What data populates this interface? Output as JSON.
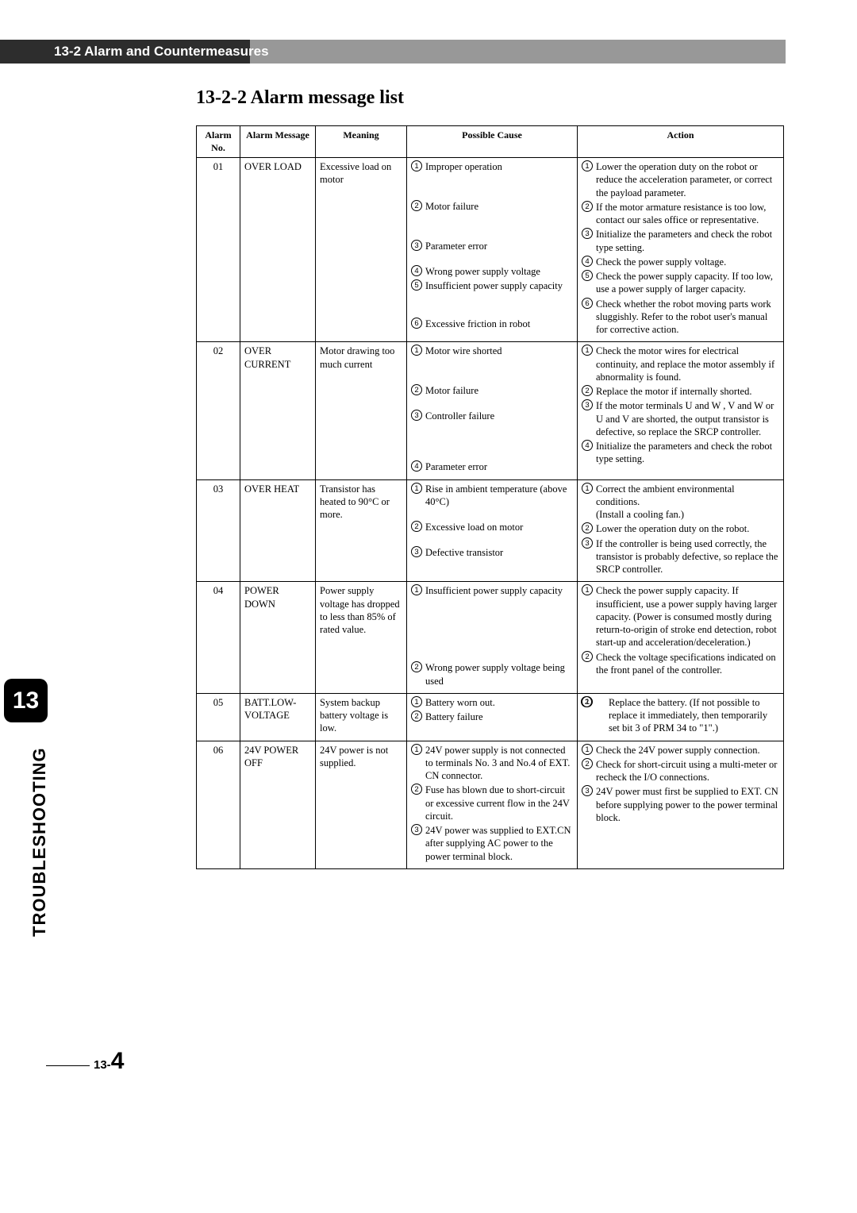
{
  "banner": {
    "text": "13-2 Alarm and Countermeasures"
  },
  "section_title": "13-2-2  Alarm message list",
  "chapter_tab": "13",
  "side_label": "TROUBLESHOOTING",
  "page_number": {
    "prefix": "13-",
    "num": "4"
  },
  "table": {
    "headers": {
      "no": "Alarm No.",
      "msg": "Alarm Message",
      "mean": "Meaning",
      "cause": "Possible Cause",
      "action": "Action"
    },
    "rows": [
      {
        "no": "01",
        "msg": "OVER LOAD",
        "mean": "Excessive load on motor",
        "causes": [
          {
            "n": "1",
            "t": "Improper operation"
          },
          {
            "n": "2",
            "t": "Motor failure"
          },
          {
            "n": "3",
            "t": "Parameter error"
          },
          {
            "n": "4",
            "t": "Wrong power supply voltage"
          },
          {
            "n": "5",
            "t": "Insufficient power supply capacity"
          },
          {
            "n": "6",
            "t": "Excessive friction in robot"
          }
        ],
        "actions": [
          {
            "n": "1",
            "t": "Lower the operation duty on the robot or reduce the acceleration parameter, or correct the payload parameter."
          },
          {
            "n": "2",
            "t": "If the motor armature resistance is too low, contact our sales office or representative."
          },
          {
            "n": "3",
            "t": "Initialize the parameters and check the robot type setting."
          },
          {
            "n": "4",
            "t": "Check the power supply voltage."
          },
          {
            "n": "5",
            "t": "Check the power supply capacity. If too low, use a power supply of larger capacity."
          },
          {
            "n": "6",
            "t": "Check whether the robot moving parts work sluggishly. Refer to the robot user's manual for corrective action."
          }
        ]
      },
      {
        "no": "02",
        "msg": "OVER CURRENT",
        "mean": "Motor drawing too much current",
        "causes": [
          {
            "n": "1",
            "t": "Motor wire shorted"
          },
          {
            "n": "2",
            "t": "Motor failure"
          },
          {
            "n": "3",
            "t": "Controller failure"
          },
          {
            "n": "4",
            "t": "Parameter error"
          }
        ],
        "actions": [
          {
            "n": "1",
            "t": "Check the motor wires for electrical continuity, and replace the motor assembly if abnormality is found."
          },
          {
            "n": "2",
            "t": "Replace the motor if internally shorted."
          },
          {
            "n": "3",
            "t": "If the motor terminals U and W , V and W or U and V are shorted, the output transistor is defective, so replace the SRCP controller."
          },
          {
            "n": "4",
            "t": "Initialize the parameters and check the robot type setting."
          }
        ]
      },
      {
        "no": "03",
        "msg": "OVER HEAT",
        "mean": "Transistor has heated to 90°C or more.",
        "causes": [
          {
            "n": "1",
            "t": "Rise in ambient temperature (above 40°C)"
          },
          {
            "n": "2",
            "t": "Excessive load on motor"
          },
          {
            "n": "3",
            "t": "Defective transistor"
          }
        ],
        "actions": [
          {
            "n": "1",
            "t": "Correct the ambient environmental conditions.\n(Install a cooling fan.)"
          },
          {
            "n": "2",
            "t": "Lower the operation duty on the robot."
          },
          {
            "n": "3",
            "t": "If the controller is being used correctly, the transistor is probably defective, so replace the SRCP controller."
          }
        ]
      },
      {
        "no": "04",
        "msg": "POWER DOWN",
        "mean": "Power supply voltage has dropped to less than 85% of rated value.",
        "causes": [
          {
            "n": "1",
            "t": "Insufficient power supply capacity"
          },
          {
            "n": "2",
            "t": "Wrong power supply voltage being used"
          }
        ],
        "actions": [
          {
            "n": "1",
            "t": "Check the power supply capacity. If insufficient, use a power supply having larger capacity. (Power is consumed mostly during return-to-origin of stroke end detection, robot start-up and acceleration/deceleration.)"
          },
          {
            "n": "2",
            "t": "Check the voltage specifications indicated on the front panel of the controller."
          }
        ]
      },
      {
        "no": "05",
        "msg": "BATT.LOW-VOLTAGE",
        "mean": "System backup battery voltage is low.",
        "causes": [
          {
            "n": "1",
            "t": "Battery worn out."
          },
          {
            "n": "2",
            "t": "Battery failure"
          }
        ],
        "actions_double": [
          {
            "n": [
              "1",
              "2"
            ],
            "t": "Replace the battery. (If not possible to replace it immediately, then temporarily set bit 3 of PRM 34 to \"1\".)"
          }
        ]
      },
      {
        "no": "06",
        "msg": "24V POWER OFF",
        "mean": "24V power is not supplied.",
        "causes": [
          {
            "n": "1",
            "t": "24V power supply is not connected to terminals No. 3 and No.4 of EXT. CN connector."
          },
          {
            "n": "2",
            "t": "Fuse has blown due to short-circuit or excessive current flow in the 24V circuit."
          },
          {
            "n": "3",
            "t": "24V power was supplied to EXT.CN after supplying AC power to the power terminal block."
          }
        ],
        "actions": [
          {
            "n": "1",
            "t": "Check the 24V power supply connection."
          },
          {
            "n": "2",
            "t": "Check for short-circuit using a multi-meter or recheck the I/O connections."
          },
          {
            "n": "3",
            "t": "24V power must first be supplied to EXT. CN before supplying power to the power terminal block."
          }
        ]
      }
    ]
  }
}
